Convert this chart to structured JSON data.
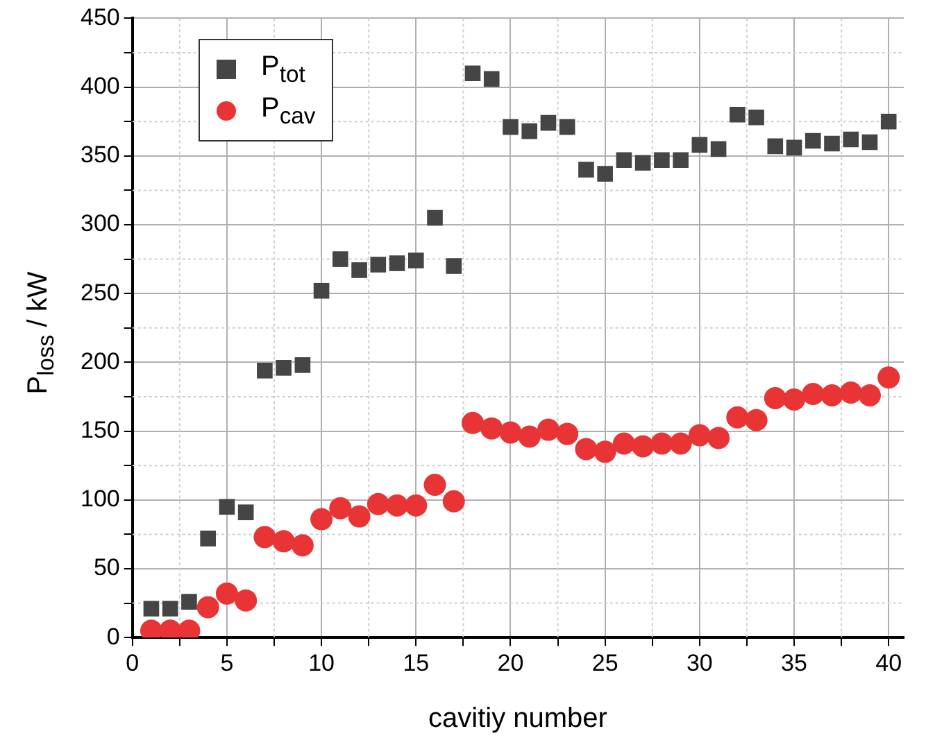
{
  "chart_data": {
    "type": "scatter",
    "xlabel": "cavitiy number",
    "ylabel": "P$_{loss}$ / kW",
    "x": [
      1,
      2,
      3,
      4,
      5,
      6,
      7,
      8,
      9,
      10,
      11,
      12,
      13,
      14,
      15,
      16,
      17,
      18,
      19,
      20,
      21,
      22,
      23,
      24,
      25,
      26,
      27,
      28,
      29,
      30,
      31,
      32,
      33,
      34,
      35,
      36,
      37,
      38,
      39,
      40
    ],
    "series": [
      {
        "name": "P$_{tot}$",
        "color": "#454545",
        "marker": "square",
        "values": [
          21,
          21,
          26,
          72,
          95,
          91,
          194,
          196,
          198,
          252,
          275,
          267,
          271,
          272,
          274,
          305,
          270,
          410,
          406,
          371,
          368,
          374,
          371,
          340,
          337,
          347,
          345,
          347,
          347,
          358,
          355,
          380,
          378,
          357,
          356,
          361,
          359,
          362,
          360,
          375
        ]
      },
      {
        "name": "P$_{cav}$",
        "color": "#e83434",
        "marker": "circle",
        "values": [
          5,
          5,
          5,
          22,
          32,
          27,
          73,
          70,
          67,
          86,
          94,
          88,
          97,
          96,
          96,
          111,
          99,
          156,
          152,
          149,
          146,
          151,
          148,
          137,
          135,
          141,
          139,
          141,
          141,
          147,
          145,
          160,
          158,
          174,
          173,
          177,
          176,
          178,
          176,
          189
        ]
      }
    ],
    "xlim": [
      0,
      40.8
    ],
    "xticks": [
      0,
      {
        "value": 2.5,
        "label": null
      },
      5,
      {
        "value": 7.5,
        "label": null
      },
      10,
      {
        "value": 12.5,
        "label": null
      },
      15,
      {
        "value": 17.5,
        "label": null
      },
      20,
      {
        "value": 22.5,
        "label": null
      },
      25,
      {
        "value": 27.5,
        "label": null
      },
      30,
      {
        "value": 32.5,
        "label": null
      },
      35,
      {
        "value": 37.5,
        "label": null
      },
      40
    ],
    "ylim": [
      0,
      450
    ],
    "yticks": [
      0,
      {
        "value": 25,
        "label": null
      },
      50,
      {
        "value": 75,
        "label": null
      },
      100,
      {
        "value": 125,
        "label": null
      },
      150,
      {
        "value": 175,
        "label": null
      },
      200,
      {
        "value": 225,
        "label": null
      },
      250,
      {
        "value": 275,
        "label": null
      },
      300,
      {
        "value": 325,
        "label": null
      },
      350,
      {
        "value": 375,
        "label": null
      },
      400,
      {
        "value": 425,
        "label": null
      },
      450
    ],
    "grid": true,
    "legend": "top left"
  }
}
